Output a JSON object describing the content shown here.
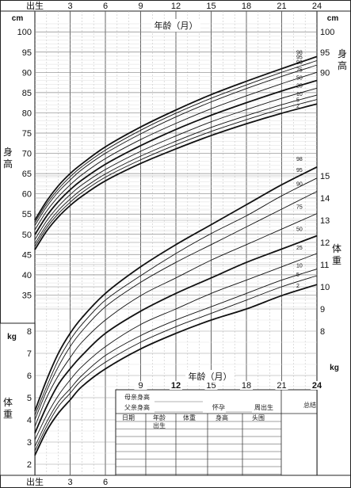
{
  "chart_data": {
    "type": "line",
    "title": "",
    "x_label": "年龄（月）",
    "x_unit": "月",
    "x_range": [
      0,
      24
    ],
    "x_ticks": [
      {
        "value": 0,
        "label": "出生"
      },
      {
        "value": 3,
        "label": "3"
      },
      {
        "value": 6,
        "label": "6"
      },
      {
        "value": 9,
        "label": "9"
      },
      {
        "value": 12,
        "label": "12"
      },
      {
        "value": 15,
        "label": "15"
      },
      {
        "value": 18,
        "label": "18"
      },
      {
        "value": 21,
        "label": "21"
      },
      {
        "value": 24,
        "label": "24"
      }
    ],
    "bottom_x_ticks": [
      {
        "value": 0,
        "label": "出生"
      },
      {
        "value": 3,
        "label": "3"
      },
      {
        "value": 6,
        "label": "6"
      }
    ],
    "mid_x_ticks": [
      {
        "value": 9,
        "label": "9"
      },
      {
        "value": 12,
        "label": "12"
      },
      {
        "value": 15,
        "label": "15"
      },
      {
        "value": 18,
        "label": "18"
      },
      {
        "value": 21,
        "label": "21"
      },
      {
        "value": 24,
        "label": "24"
      }
    ],
    "height": {
      "label": "身高",
      "unit": "cm",
      "range": [
        30,
        102
      ],
      "left_ticks": [
        35,
        40,
        45,
        50,
        55,
        60,
        65,
        70,
        75,
        80,
        85,
        90,
        95,
        100
      ],
      "right_ticks": [
        90,
        95,
        100
      ],
      "percentile_labels": [
        "98",
        "95",
        "90",
        "75",
        "50",
        "25",
        "10",
        "5",
        "2"
      ],
      "x": [
        0,
        1,
        2,
        3,
        4,
        6,
        9,
        12,
        15,
        18,
        21,
        24
      ],
      "series": [
        {
          "name": "98",
          "values": [
            53.5,
            58.2,
            62.0,
            65.0,
            67.4,
            71.6,
            76.5,
            80.7,
            84.5,
            87.8,
            90.9,
            93.9
          ]
        },
        {
          "name": "95",
          "values": [
            52.9,
            57.5,
            61.2,
            64.2,
            66.7,
            70.8,
            75.7,
            79.9,
            83.6,
            86.9,
            90.0,
            92.9
          ]
        },
        {
          "name": "90",
          "values": [
            52.2,
            56.8,
            60.5,
            63.4,
            66.0,
            70.0,
            74.8,
            79.0,
            82.7,
            86.0,
            89.0,
            91.8
          ]
        },
        {
          "name": "75",
          "values": [
            51.1,
            55.7,
            59.3,
            62.2,
            64.7,
            68.7,
            73.4,
            77.4,
            81.0,
            84.2,
            87.2,
            90.0
          ]
        },
        {
          "name": "50",
          "values": [
            49.9,
            54.5,
            58.1,
            61.0,
            63.4,
            67.3,
            71.9,
            75.9,
            79.4,
            82.5,
            85.4,
            88.0
          ]
        },
        {
          "name": "25",
          "values": [
            48.7,
            53.3,
            56.9,
            59.8,
            62.2,
            66.0,
            70.5,
            74.3,
            77.8,
            80.8,
            83.6,
            86.1
          ]
        },
        {
          "name": "10",
          "values": [
            47.7,
            52.3,
            55.9,
            58.7,
            61.1,
            64.9,
            69.3,
            73.0,
            76.4,
            79.3,
            82.0,
            84.4
          ]
        },
        {
          "name": "5",
          "values": [
            47.0,
            51.6,
            55.1,
            57.9,
            60.3,
            64.1,
            68.4,
            72.1,
            75.4,
            78.3,
            81.0,
            83.3
          ]
        },
        {
          "name": "2",
          "values": [
            46.2,
            50.8,
            54.3,
            57.1,
            59.4,
            63.2,
            67.5,
            71.1,
            74.4,
            77.3,
            79.9,
            82.2
          ]
        }
      ],
      "bold_series": [
        "98",
        "50",
        "2"
      ]
    },
    "weight": {
      "label": "体重",
      "unit": "kg",
      "range": [
        1.5,
        16
      ],
      "left_ticks": [
        2,
        3,
        4,
        5,
        6,
        7,
        8
      ],
      "right_ticks": [
        8,
        9,
        10,
        11,
        12,
        13,
        14,
        15
      ],
      "percentile_labels": [
        "98",
        "95",
        "90",
        "75",
        "50",
        "25",
        "10",
        "5",
        "2"
      ],
      "x": [
        0,
        1,
        2,
        3,
        4,
        6,
        9,
        12,
        15,
        18,
        21,
        24
      ],
      "series": [
        {
          "name": "98",
          "values": [
            4.4,
            5.8,
            7.0,
            7.9,
            8.6,
            9.7,
            10.9,
            11.9,
            12.8,
            13.7,
            14.6,
            15.4
          ]
        },
        {
          "name": "95",
          "values": [
            4.2,
            5.5,
            6.7,
            7.6,
            8.3,
            9.4,
            10.5,
            11.5,
            12.4,
            13.2,
            14.1,
            14.9
          ]
        },
        {
          "name": "90",
          "values": [
            4.0,
            5.3,
            6.4,
            7.3,
            8.0,
            9.1,
            10.2,
            11.1,
            11.9,
            12.7,
            13.5,
            14.3
          ]
        },
        {
          "name": "75",
          "values": [
            3.7,
            5.0,
            6.0,
            6.8,
            7.5,
            8.5,
            9.6,
            10.4,
            11.2,
            11.9,
            12.6,
            13.3
          ]
        },
        {
          "name": "50",
          "values": [
            3.4,
            4.6,
            5.6,
            6.3,
            6.9,
            7.9,
            8.9,
            9.7,
            10.4,
            11.1,
            11.7,
            12.3
          ]
        },
        {
          "name": "25",
          "values": [
            3.1,
            4.2,
            5.1,
            5.8,
            6.4,
            7.3,
            8.3,
            9.0,
            9.7,
            10.3,
            10.9,
            11.5
          ]
        },
        {
          "name": "10",
          "values": [
            2.8,
            3.9,
            4.8,
            5.4,
            6.0,
            6.9,
            7.8,
            8.5,
            9.1,
            9.7,
            10.3,
            10.8
          ]
        },
        {
          "name": "5",
          "values": [
            2.6,
            3.7,
            4.6,
            5.2,
            5.8,
            6.6,
            7.5,
            8.2,
            8.8,
            9.4,
            10.0,
            10.5
          ]
        },
        {
          "name": "2",
          "values": [
            2.4,
            3.5,
            4.3,
            4.9,
            5.5,
            6.3,
            7.2,
            7.9,
            8.5,
            9.0,
            9.6,
            10.1
          ]
        }
      ],
      "bold_series": [
        "98",
        "50",
        "2"
      ]
    }
  },
  "record_form": {
    "mother_height_label": "母亲身高",
    "father_height_label": "父亲身高",
    "gestation_label": "怀孕",
    "weeks_born_label": "周出生",
    "summary_label": "总结",
    "columns": [
      "日期",
      "年龄",
      "体重",
      "身高",
      "头围"
    ],
    "age_sub_label": "出生"
  }
}
